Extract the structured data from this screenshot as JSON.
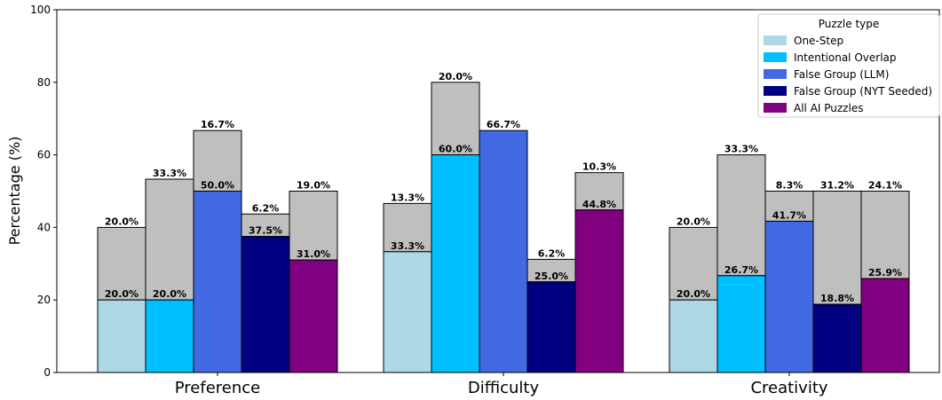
{
  "chart_data": {
    "type": "bar",
    "stacked_segments": true,
    "ylabel": "Percentage (%)",
    "ylim": [
      0,
      100
    ],
    "yticks": [
      0,
      20,
      40,
      60,
      80,
      100
    ],
    "grid": false,
    "categories": [
      "Preference",
      "Difficulty",
      "Creativity"
    ],
    "legend": {
      "title": "Puzzle type",
      "placement": "top-right"
    },
    "colors": {
      "upper_segment": "#bfbfbf",
      "edge": "#000000"
    },
    "series": [
      {
        "name": "One-Step",
        "color": "#add8e6",
        "base_values": [
          20.0,
          33.3,
          20.0
        ],
        "base_labels": [
          "20.0%",
          "33.3%",
          "20.0%"
        ],
        "upper_values": [
          20.0,
          13.3,
          20.0
        ],
        "upper_labels": [
          "20.0%",
          "13.3%",
          "20.0%"
        ]
      },
      {
        "name": "Intentional Overlap",
        "color": "#00bfff",
        "base_values": [
          20.0,
          60.0,
          26.7
        ],
        "base_labels": [
          "20.0%",
          "60.0%",
          "26.7%"
        ],
        "upper_values": [
          33.3,
          20.0,
          33.3
        ],
        "upper_labels": [
          "33.3%",
          "20.0%",
          "33.3%"
        ]
      },
      {
        "name": "False Group (LLM)",
        "color": "#4169e1",
        "base_values": [
          50.0,
          66.7,
          41.7
        ],
        "base_labels": [
          "50.0%",
          "66.7%",
          "41.7%"
        ],
        "upper_values": [
          16.7,
          0,
          8.3
        ],
        "upper_labels": [
          "16.7%",
          "",
          "8.3%"
        ]
      },
      {
        "name": "False Group (NYT Seeded)",
        "color": "#000080",
        "base_values": [
          37.5,
          25.0,
          18.8
        ],
        "base_labels": [
          "37.5%",
          "25.0%",
          "18.8%"
        ],
        "upper_values": [
          6.2,
          6.2,
          31.2
        ],
        "upper_labels": [
          "6.2%",
          "6.2%",
          "31.2%"
        ]
      },
      {
        "name": "All AI Puzzles",
        "color": "#800080",
        "base_values": [
          31.0,
          44.8,
          25.9
        ],
        "base_labels": [
          "31.0%",
          "44.8%",
          "25.9%"
        ],
        "upper_values": [
          19.0,
          10.3,
          24.1
        ],
        "upper_labels": [
          "19.0%",
          "10.3%",
          "24.1%"
        ]
      }
    ]
  }
}
